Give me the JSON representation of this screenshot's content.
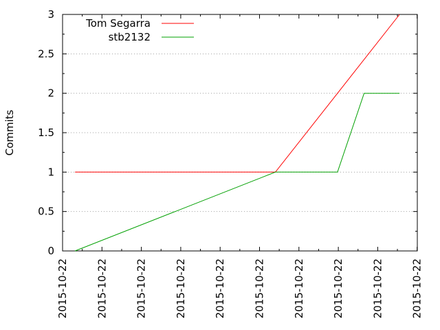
{
  "chart_data": {
    "type": "line",
    "ylabel": "Commits",
    "ylim": [
      0,
      3
    ],
    "y_ticks": [
      "0",
      "0.5",
      "1",
      "1.5",
      "2",
      "2.5",
      "3"
    ],
    "y_tick_values": [
      0,
      0.5,
      1,
      1.5,
      2,
      2.5,
      3
    ],
    "x_tick_labels": [
      "2015-10-22",
      "2015-10-22",
      "2015-10-22",
      "2015-10-22",
      "2015-10-22",
      "2015-10-22",
      "2015-10-22",
      "2015-10-22",
      "2015-10-22",
      "2015-10-22"
    ],
    "x_axis_note": "All ticks print the same date; points are positioned as fractions of the x-range.",
    "x_range": [
      0,
      1
    ],
    "grid": "horizontal dotted",
    "legend_position": "top-left",
    "series": [
      {
        "name": "Tom Segarra",
        "color": "#ff0000",
        "x": [
          0.035,
          0.6,
          0.775,
          0.95
        ],
        "y": [
          1,
          1,
          2,
          3
        ]
      },
      {
        "name": "stb2132",
        "color": "#00a000",
        "x": [
          0.035,
          0.6,
          0.775,
          0.85,
          0.95
        ],
        "y": [
          0,
          1,
          1,
          2,
          2
        ]
      }
    ]
  }
}
